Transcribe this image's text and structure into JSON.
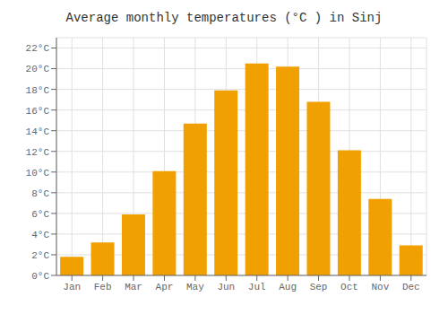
{
  "chart_data": {
    "type": "bar",
    "title": "Average monthly temperatures (°C ) in Sinj",
    "categories": [
      "Jan",
      "Feb",
      "Mar",
      "Apr",
      "May",
      "Jun",
      "Jul",
      "Aug",
      "Sep",
      "Oct",
      "Nov",
      "Dec"
    ],
    "values": [
      1.8,
      3.2,
      5.9,
      10.1,
      14.7,
      17.9,
      20.5,
      20.2,
      16.8,
      12.1,
      7.4,
      2.9
    ],
    "color": "#F0A000",
    "ylim": [
      0,
      23.0
    ],
    "yticks": [
      {
        "value": 0,
        "label": "0°C"
      },
      {
        "value": 2,
        "label": "2°C"
      },
      {
        "value": 4,
        "label": "4°C"
      },
      {
        "value": 6,
        "label": "6°C"
      },
      {
        "value": 8,
        "label": "8°C"
      },
      {
        "value": 10,
        "label": "10°C"
      },
      {
        "value": 12,
        "label": "12°C"
      },
      {
        "value": 14,
        "label": "14°C"
      },
      {
        "value": 16,
        "label": "16°C"
      },
      {
        "value": 18,
        "label": "18°C"
      },
      {
        "value": 20,
        "label": "20°C"
      },
      {
        "value": 22,
        "label": "22°C"
      }
    ],
    "grid": true
  }
}
